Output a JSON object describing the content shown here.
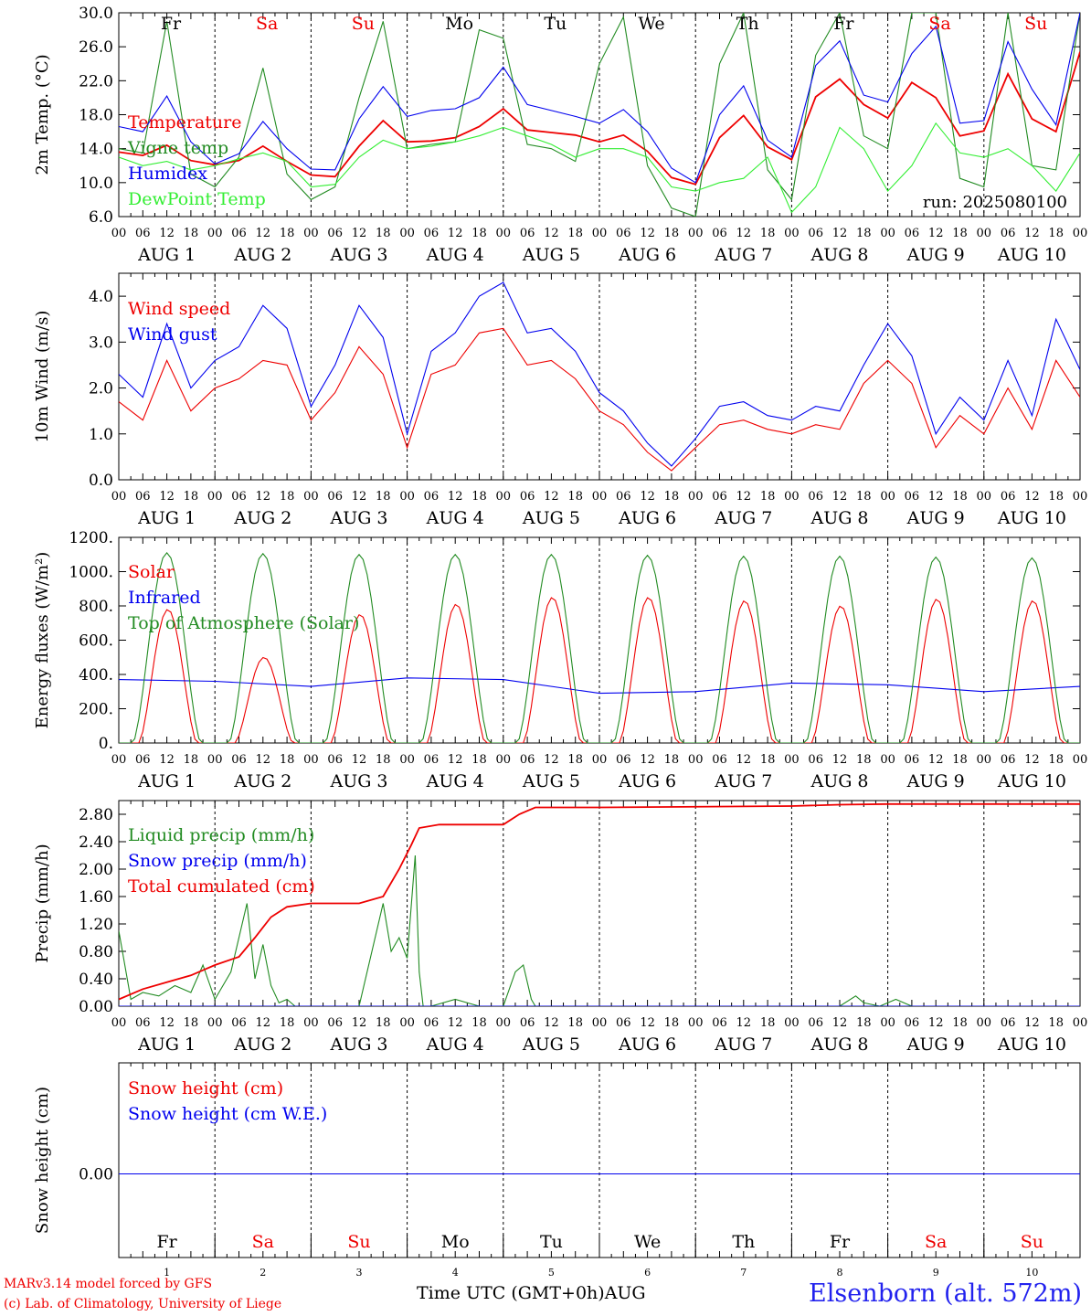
{
  "chart_data": [
    {
      "type": "line",
      "ylabel": "2m Temp. (°C)",
      "ylim": [
        6.0,
        30.0
      ],
      "yticks": [
        "6.0",
        "10.0",
        "14.0",
        "18.0",
        "22.0",
        "26.0",
        "30.0"
      ],
      "annotation": "run: 2025080100",
      "series": [
        {
          "name": "Temperature",
          "color": "#ee0000",
          "x": [
            0,
            6,
            12,
            18,
            24,
            30,
            36,
            42,
            48,
            54,
            60,
            66,
            72,
            78,
            84,
            90,
            96,
            102,
            108,
            114,
            120,
            126,
            132,
            138,
            144,
            150,
            156,
            162,
            168,
            174,
            180,
            186,
            192,
            198,
            204,
            210,
            216,
            222,
            228,
            234,
            240
          ],
          "y": [
            13.6,
            13.2,
            14.4,
            12.6,
            12.1,
            12.6,
            14.3,
            12.5,
            10.9,
            10.7,
            14.3,
            17.3,
            14.8,
            14.9,
            15.3,
            16.6,
            18.7,
            16.2,
            15.9,
            15.6,
            14.8,
            15.6,
            13.7,
            10.6,
            9.8,
            15.3,
            17.9,
            14.2,
            12.7,
            20.1,
            22.2,
            19.2,
            17.6,
            21.8,
            20.0,
            15.5,
            16.1,
            22.8,
            17.5,
            16.0,
            25.4
          ]
        },
        {
          "name": "Vigne temp",
          "color": "#228b22",
          "x": [
            0,
            6,
            12,
            18,
            24,
            30,
            36,
            42,
            48,
            54,
            60,
            66,
            72,
            78,
            84,
            90,
            96,
            102,
            108,
            114,
            120,
            126,
            132,
            138,
            144,
            150,
            156,
            162,
            168,
            174,
            180,
            186,
            192,
            198,
            204,
            210,
            216,
            222,
            228,
            234,
            240
          ],
          "y": [
            14.0,
            13.5,
            29.0,
            11.0,
            9.5,
            13.0,
            23.5,
            11.0,
            8.0,
            9.5,
            20.0,
            29.0,
            14.0,
            14.5,
            14.8,
            28.0,
            27.0,
            14.5,
            14.0,
            12.5,
            24.0,
            29.5,
            12.0,
            7.0,
            6.0,
            24.0,
            30.0,
            11.5,
            8.0,
            25.0,
            30.0,
            15.5,
            14.0,
            30.0,
            30.0,
            10.5,
            9.5,
            30.0,
            12.0,
            11.5,
            30.0
          ]
        },
        {
          "name": "Humidex",
          "color": "#0000ee",
          "x": [
            0,
            6,
            12,
            18,
            24,
            30,
            36,
            42,
            48,
            54,
            60,
            66,
            72,
            78,
            84,
            90,
            96,
            102,
            108,
            114,
            120,
            126,
            132,
            138,
            144,
            150,
            156,
            162,
            168,
            174,
            180,
            186,
            192,
            198,
            204,
            210,
            216,
            222,
            228,
            234,
            240
          ],
          "y": [
            16.6,
            16.0,
            20.2,
            14.8,
            12.2,
            13.4,
            17.2,
            14.0,
            11.6,
            11.5,
            17.5,
            21.3,
            17.8,
            18.5,
            18.7,
            20.0,
            23.6,
            19.2,
            18.5,
            17.8,
            17.0,
            18.6,
            16.0,
            11.7,
            10.0,
            18.0,
            21.4,
            15.0,
            13.0,
            23.8,
            26.7,
            20.3,
            19.5,
            25.2,
            28.4,
            17.0,
            17.3,
            26.6,
            21.0,
            16.8,
            30.0
          ]
        },
        {
          "name": "DewPoint Temp",
          "color": "#33ee33",
          "x": [
            0,
            6,
            12,
            18,
            24,
            30,
            36,
            42,
            48,
            54,
            60,
            66,
            72,
            78,
            84,
            90,
            96,
            102,
            108,
            114,
            120,
            126,
            132,
            138,
            144,
            150,
            156,
            162,
            168,
            174,
            180,
            186,
            192,
            198,
            204,
            210,
            216,
            222,
            228,
            234,
            240
          ],
          "y": [
            13.0,
            12.0,
            12.5,
            11.5,
            12.0,
            12.8,
            13.5,
            12.5,
            9.5,
            9.8,
            13.0,
            15.0,
            14.0,
            14.3,
            14.8,
            15.5,
            16.5,
            15.5,
            14.5,
            13.0,
            14.0,
            14.0,
            13.0,
            9.5,
            9.0,
            10.0,
            10.5,
            13.0,
            6.5,
            9.5,
            16.5,
            14.0,
            9.0,
            12.0,
            17.0,
            13.5,
            13.0,
            14.0,
            12.0,
            9.0,
            13.5
          ]
        }
      ]
    },
    {
      "type": "line",
      "ylabel": "10m Wind (m/s)",
      "ylim": [
        0.0,
        4.5
      ],
      "yticks": [
        "0.0",
        "1.0",
        "2.0",
        "3.0",
        "4.0"
      ],
      "series": [
        {
          "name": "Wind speed",
          "color": "#ee0000",
          "x": [
            0,
            6,
            12,
            18,
            24,
            30,
            36,
            42,
            48,
            54,
            60,
            66,
            72,
            78,
            84,
            90,
            96,
            102,
            108,
            114,
            120,
            126,
            132,
            138,
            144,
            150,
            156,
            162,
            168,
            174,
            180,
            186,
            192,
            198,
            204,
            210,
            216,
            222,
            228,
            234,
            240
          ],
          "y": [
            1.7,
            1.3,
            2.6,
            1.5,
            2.0,
            2.2,
            2.6,
            2.5,
            1.3,
            1.9,
            2.9,
            2.3,
            0.7,
            2.3,
            2.5,
            3.2,
            3.3,
            2.5,
            2.6,
            2.2,
            1.5,
            1.2,
            0.6,
            0.2,
            0.7,
            1.2,
            1.3,
            1.1,
            1.0,
            1.2,
            1.1,
            2.1,
            2.6,
            2.1,
            0.7,
            1.4,
            1.0,
            2.0,
            1.1,
            2.6,
            1.8
          ]
        },
        {
          "name": "Wind gust",
          "color": "#0000ee",
          "x": [
            0,
            6,
            12,
            18,
            24,
            30,
            36,
            42,
            48,
            54,
            60,
            66,
            72,
            78,
            84,
            90,
            96,
            102,
            108,
            114,
            120,
            126,
            132,
            138,
            144,
            150,
            156,
            162,
            168,
            174,
            180,
            186,
            192,
            198,
            204,
            210,
            216,
            222,
            228,
            234,
            240
          ],
          "y": [
            2.3,
            1.8,
            3.4,
            2.0,
            2.6,
            2.9,
            3.8,
            3.3,
            1.6,
            2.5,
            3.8,
            3.1,
            1.0,
            2.8,
            3.2,
            4.0,
            4.3,
            3.2,
            3.3,
            2.8,
            1.9,
            1.5,
            0.8,
            0.3,
            0.9,
            1.6,
            1.7,
            1.4,
            1.3,
            1.6,
            1.5,
            2.5,
            3.4,
            2.7,
            1.0,
            1.8,
            1.3,
            2.6,
            1.4,
            3.5,
            2.4
          ]
        }
      ]
    },
    {
      "type": "line",
      "ylabel": "Energy fluxes (W/m²)",
      "ylim": [
        0,
        1200
      ],
      "yticks": [
        "0.",
        "200.",
        "400.",
        "600.",
        "800.",
        "1000.",
        "1200."
      ],
      "series": [
        {
          "name": "Solar",
          "color": "#ee0000",
          "daily_peaks": [
            780,
            500,
            750,
            810,
            850,
            850,
            830,
            800,
            840,
            830
          ]
        },
        {
          "name": "Infrared",
          "color": "#0000ee",
          "x": [
            0,
            24,
            48,
            72,
            96,
            120,
            144,
            168,
            192,
            216,
            240
          ],
          "y": [
            370,
            360,
            330,
            380,
            370,
            290,
            300,
            350,
            340,
            300,
            330
          ]
        },
        {
          "name": "Top of Atmosphere (Solar)",
          "color": "#228b22",
          "daily_peaks": [
            1110,
            1105,
            1100,
            1100,
            1100,
            1095,
            1090,
            1090,
            1085,
            1080
          ]
        }
      ]
    },
    {
      "type": "line",
      "ylabel": "Precip (mm/h)",
      "ylim": [
        0.0,
        3.0
      ],
      "yticks": [
        "0.00",
        "0.40",
        "0.80",
        "1.20",
        "1.60",
        "2.00",
        "2.40",
        "2.80"
      ],
      "series": [
        {
          "name": "Liquid precip (mm/h)",
          "color": "#228b22",
          "x": [
            0,
            3,
            6,
            10,
            14,
            18,
            21,
            24,
            28,
            32,
            34,
            36,
            38,
            40,
            42,
            44,
            48,
            60,
            66,
            68,
            70,
            72,
            74,
            75,
            76,
            78,
            84,
            90,
            96,
            99,
            101,
            103,
            104,
            180,
            184,
            186,
            190,
            194,
            198,
            240
          ],
          "y": [
            1.1,
            0.1,
            0.2,
            0.15,
            0.3,
            0.2,
            0.6,
            0.1,
            0.5,
            1.5,
            0.4,
            0.9,
            0.3,
            0.05,
            0.1,
            0.0,
            0.0,
            0.0,
            1.5,
            0.8,
            1.0,
            0.7,
            2.2,
            0.5,
            0.0,
            0.0,
            0.1,
            0.0,
            0.0,
            0.5,
            0.6,
            0.1,
            0.0,
            0.0,
            0.15,
            0.05,
            0.0,
            0.1,
            0.0,
            0.0
          ]
        },
        {
          "name": "Snow precip (mm/h)",
          "color": "#0000ee",
          "x": [
            0,
            240
          ],
          "y": [
            0.0,
            0.0
          ]
        },
        {
          "name": "Total cumulated (cm)",
          "color": "#ee0000",
          "x": [
            0,
            6,
            12,
            18,
            24,
            30,
            34,
            38,
            42,
            48,
            60,
            66,
            70,
            73,
            75,
            80,
            96,
            100,
            104,
            120,
            168,
            180,
            192,
            240
          ],
          "y": [
            0.1,
            0.25,
            0.35,
            0.45,
            0.6,
            0.72,
            1.0,
            1.3,
            1.45,
            1.5,
            1.5,
            1.6,
            2.0,
            2.35,
            2.6,
            2.65,
            2.65,
            2.8,
            2.9,
            2.9,
            2.92,
            2.94,
            2.95,
            2.95
          ]
        }
      ]
    },
    {
      "type": "line",
      "ylabel": "Snow height (cm)",
      "yticks": [
        "0.00"
      ],
      "series": [
        {
          "name": "Snow height (cm)",
          "color": "#ee0000",
          "x": [
            0,
            240
          ],
          "y": [
            0.0,
            0.0
          ]
        },
        {
          "name": "Snow height (cm W.E.)",
          "color": "#0000ee",
          "x": [
            0,
            240
          ],
          "y": [
            0.0,
            0.0
          ]
        }
      ]
    }
  ],
  "axis": {
    "hour_ticks": [
      "00",
      "06",
      "12",
      "18"
    ],
    "end_tick": "00",
    "month": "AUG",
    "dates": [
      "1",
      "2",
      "3",
      "4",
      "5",
      "6",
      "7",
      "8",
      "9",
      "10"
    ],
    "weekdays": [
      "Fr",
      "Sa",
      "Su",
      "Mo",
      "Tu",
      "We",
      "Th",
      "Fr",
      "Sa",
      "Su"
    ],
    "weekend_flags": [
      false,
      true,
      true,
      false,
      false,
      false,
      false,
      false,
      true,
      true
    ],
    "xlabel": "Time UTC (GMT+0h)",
    "month_label": "AUG"
  },
  "footer": {
    "model_line": "MARv3.14 model forced by GFS",
    "credit_line": "(c) Lab. of Climatology, University of Liege",
    "station": "Elsenborn (alt. 572m)"
  },
  "colors": {
    "red": "#ee0000",
    "green": "#228b22",
    "blue": "#0000ee",
    "lightgreen": "#33ee33",
    "black": "#000000"
  }
}
